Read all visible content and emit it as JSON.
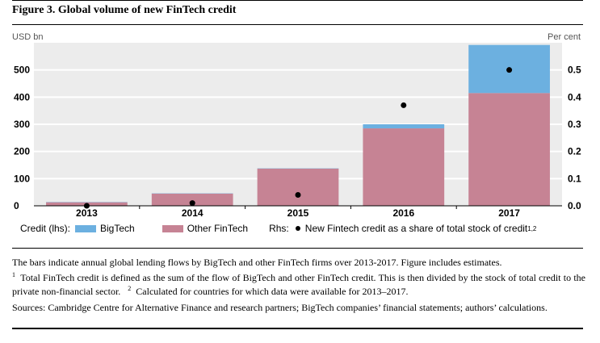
{
  "figure": {
    "title": "Figure 3. Global volume of new FinTech credit",
    "left_unit": "USD bn",
    "right_unit": "Per cent"
  },
  "legend": {
    "credit_label": "Credit (lhs):",
    "bigtech_label": "BigTech",
    "otherfintech_label": "Other FinTech",
    "rhs_label": "Rhs:",
    "share_label": "New Fintech credit as a share of total stock of credit",
    "share_sup": "1,2"
  },
  "colors": {
    "bigtech": "#6cb0e0",
    "other_fintech": "#c68394",
    "plot_background": "#ececec",
    "gridline": "#ffffff",
    "marker": "#000000"
  },
  "chart_data": {
    "type": "bar",
    "stacked": true,
    "title": "Global volume of new FinTech credit",
    "categories": [
      "2013",
      "2014",
      "2015",
      "2016",
      "2017"
    ],
    "series": [
      {
        "name": "Other FinTech",
        "axis": "left",
        "values": [
          13,
          45,
          137,
          285,
          415
        ]
      },
      {
        "name": "BigTech",
        "axis": "left",
        "values": [
          1,
          1,
          1,
          15,
          177
        ]
      },
      {
        "name": "New Fintech credit as a share of total stock of credit",
        "axis": "right",
        "type": "scatter",
        "values": [
          0.0,
          0.01,
          0.04,
          0.37,
          0.5
        ]
      }
    ],
    "ylabel": "USD bn",
    "ylim": [
      0,
      600
    ],
    "yticks": [
      "0",
      "100",
      "200",
      "300",
      "400",
      "500"
    ],
    "y2label": "Per cent",
    "y2lim": [
      0,
      0.6
    ],
    "y2ticks": [
      "0.0",
      "0.1",
      "0.2",
      "0.3",
      "0.4",
      "0.5"
    ],
    "grid": true,
    "legend_position": "bottom"
  },
  "notes": {
    "line1": "The bars indicate annual global lending flows by BigTech and other FinTech firms over 2013-2017. Figure includes estimates.",
    "fn1_mark": "1",
    "fn1_text": "Total FinTech credit is defined as the sum of the flow of BigTech and other FinTech credit. This is then divided by the stock of total credit to the private non-financial sector.",
    "fn2_mark": "2",
    "fn2_text": "Calculated for countries for which data were available for 2013–2017.",
    "sources": "Sources: Cambridge Centre for Alternative Finance and research partners; BigTech companies’ financial statements; authors’ calculations."
  }
}
